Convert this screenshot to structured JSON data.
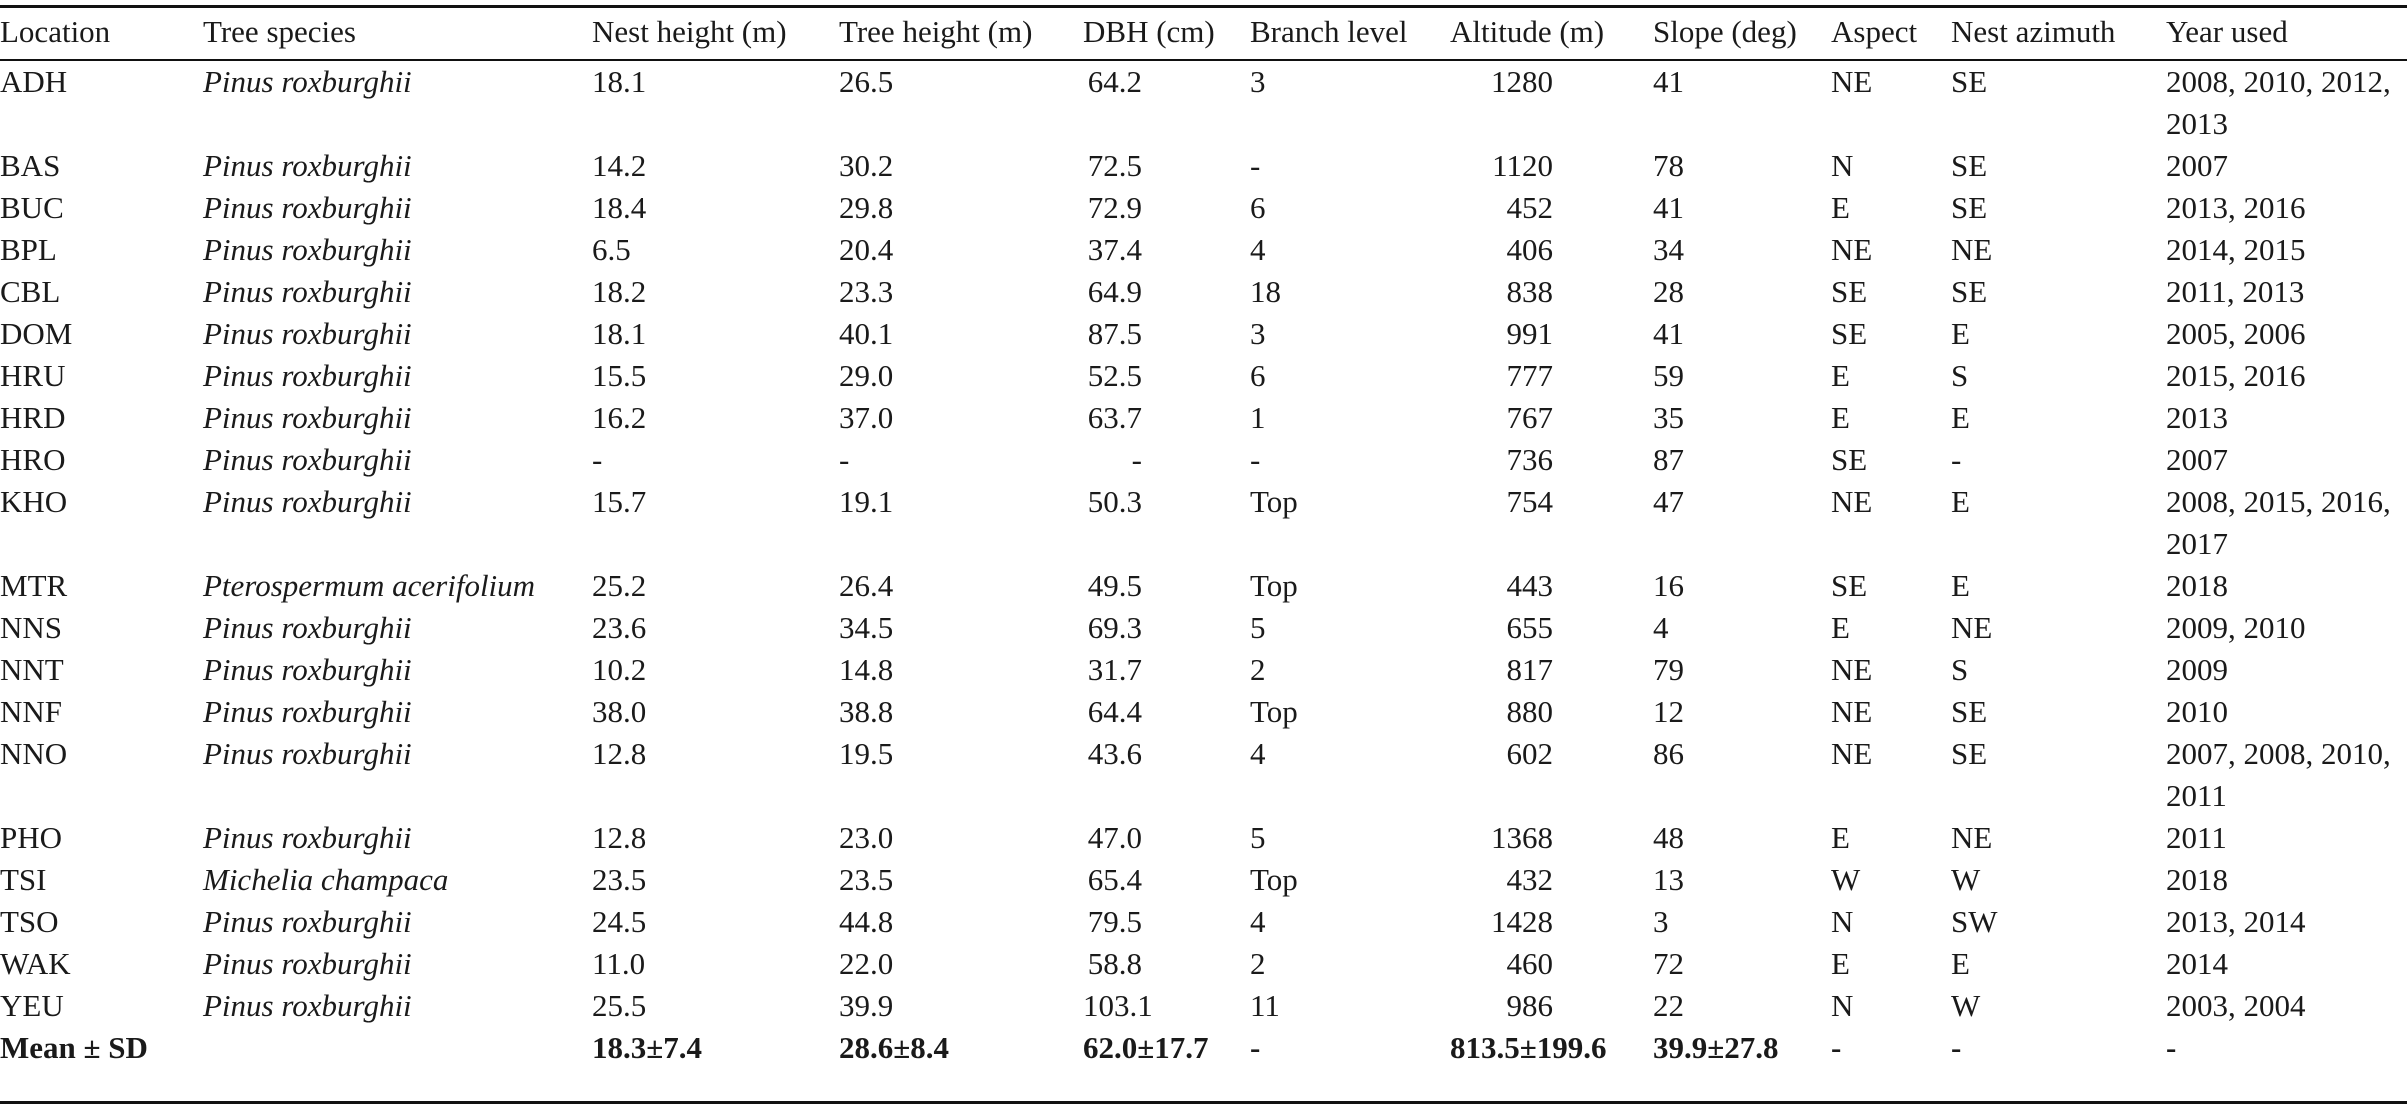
{
  "table": {
    "columns": [
      "Location",
      "Tree species",
      "Nest height (m)",
      "Tree height (m)",
      "DBH (cm)",
      "Branch level",
      "Altitude (m)",
      "Slope (deg)",
      "Aspect",
      "Nest azimuth",
      "Year used"
    ],
    "rows": [
      {
        "location": "ADH",
        "species": "Pinus roxburghii",
        "nest_height": "18.1",
        "tree_height": "26.5",
        "dbh": "64.2",
        "branch_level": "3",
        "altitude": "1280",
        "slope": "41",
        "aspect": "NE",
        "nest_azimuth": "SE",
        "year_used": "2008, 2010, 2012, 2013"
      },
      {
        "location": "BAS",
        "species": "Pinus roxburghii",
        "nest_height": "14.2",
        "tree_height": "30.2",
        "dbh": "72.5",
        "branch_level": "-",
        "altitude": "1120",
        "slope": "78",
        "aspect": "N",
        "nest_azimuth": "SE",
        "year_used": "2007"
      },
      {
        "location": "BUC",
        "species": "Pinus roxburghii",
        "nest_height": "18.4",
        "tree_height": "29.8",
        "dbh": "72.9",
        "branch_level": "6",
        "altitude": "452",
        "slope": "41",
        "aspect": "E",
        "nest_azimuth": "SE",
        "year_used": "2013, 2016"
      },
      {
        "location": "BPL",
        "species": "Pinus roxburghii",
        "nest_height": "6.5",
        "tree_height": "20.4",
        "dbh": "37.4",
        "branch_level": "4",
        "altitude": "406",
        "slope": "34",
        "aspect": "NE",
        "nest_azimuth": "NE",
        "year_used": "2014, 2015"
      },
      {
        "location": "CBL",
        "species": "Pinus roxburghii",
        "nest_height": "18.2",
        "tree_height": "23.3",
        "dbh": "64.9",
        "branch_level": "18",
        "altitude": "838",
        "slope": "28",
        "aspect": "SE",
        "nest_azimuth": "SE",
        "year_used": "2011, 2013"
      },
      {
        "location": "DOM",
        "species": "Pinus roxburghii",
        "nest_height": "18.1",
        "tree_height": "40.1",
        "dbh": "87.5",
        "branch_level": "3",
        "altitude": "991",
        "slope": "41",
        "aspect": "SE",
        "nest_azimuth": "E",
        "year_used": "2005, 2006"
      },
      {
        "location": "HRU",
        "species": "Pinus roxburghii",
        "nest_height": "15.5",
        "tree_height": "29.0",
        "dbh": "52.5",
        "branch_level": "6",
        "altitude": "777",
        "slope": "59",
        "aspect": "E",
        "nest_azimuth": "S",
        "year_used": "2015, 2016"
      },
      {
        "location": "HRD",
        "species": "Pinus roxburghii",
        "nest_height": "16.2",
        "tree_height": "37.0",
        "dbh": "63.7",
        "branch_level": "1",
        "altitude": "767",
        "slope": "35",
        "aspect": "E",
        "nest_azimuth": "E",
        "year_used": "2013"
      },
      {
        "location": "HRO",
        "species": "Pinus roxburghii",
        "nest_height": "-",
        "tree_height": "-",
        "dbh": "-",
        "branch_level": "-",
        "altitude": "736",
        "slope": "87",
        "aspect": "SE",
        "nest_azimuth": "-",
        "year_used": "2007"
      },
      {
        "location": "KHO",
        "species": "Pinus roxburghii",
        "nest_height": "15.7",
        "tree_height": "19.1",
        "dbh": "50.3",
        "branch_level": "Top",
        "altitude": "754",
        "slope": "47",
        "aspect": "NE",
        "nest_azimuth": "E",
        "year_used": "2008, 2015, 2016, 2017"
      },
      {
        "location": "MTR",
        "species": "Pterospermum acerifolium",
        "nest_height": "25.2",
        "tree_height": "26.4",
        "dbh": "49.5",
        "branch_level": "Top",
        "altitude": "443",
        "slope": "16",
        "aspect": "SE",
        "nest_azimuth": "E",
        "year_used": "2018"
      },
      {
        "location": "NNS",
        "species": "Pinus roxburghii",
        "nest_height": "23.6",
        "tree_height": "34.5",
        "dbh": "69.3",
        "branch_level": "5",
        "altitude": "655",
        "slope": "4",
        "aspect": "E",
        "nest_azimuth": "NE",
        "year_used": "2009, 2010"
      },
      {
        "location": "NNT",
        "species": "Pinus roxburghii",
        "nest_height": "10.2",
        "tree_height": "14.8",
        "dbh": "31.7",
        "branch_level": "2",
        "altitude": "817",
        "slope": "79",
        "aspect": "NE",
        "nest_azimuth": "S",
        "year_used": "2009"
      },
      {
        "location": "NNF",
        "species": "Pinus roxburghii",
        "nest_height": "38.0",
        "tree_height": "38.8",
        "dbh": "64.4",
        "branch_level": "Top",
        "altitude": "880",
        "slope": "12",
        "aspect": "NE",
        "nest_azimuth": "SE",
        "year_used": "2010"
      },
      {
        "location": "NNO",
        "species": "Pinus roxburghii",
        "nest_height": "12.8",
        "tree_height": "19.5",
        "dbh": "43.6",
        "branch_level": "4",
        "altitude": "602",
        "slope": "86",
        "aspect": "NE",
        "nest_azimuth": "SE",
        "year_used": "2007, 2008, 2010, 2011"
      },
      {
        "location": "PHO",
        "species": "Pinus roxburghii",
        "nest_height": "12.8",
        "tree_height": "23.0",
        "dbh": "47.0",
        "branch_level": "5",
        "altitude": "1368",
        "slope": "48",
        "aspect": "E",
        "nest_azimuth": "NE",
        "year_used": "2011"
      },
      {
        "location": "TSI",
        "species": "Michelia champaca",
        "nest_height": "23.5",
        "tree_height": "23.5",
        "dbh": "65.4",
        "branch_level": "Top",
        "altitude": "432",
        "slope": "13",
        "aspect": "W",
        "nest_azimuth": "W",
        "year_used": "2018"
      },
      {
        "location": "TSO",
        "species": "Pinus roxburghii",
        "nest_height": "24.5",
        "tree_height": "44.8",
        "dbh": "79.5",
        "branch_level": "4",
        "altitude": "1428",
        "slope": "3",
        "aspect": "N",
        "nest_azimuth": "SW",
        "year_used": "2013, 2014"
      },
      {
        "location": "WAK",
        "species": "Pinus roxburghii",
        "nest_height": "11.0",
        "tree_height": "22.0",
        "dbh": "58.8",
        "branch_level": "2",
        "altitude": "460",
        "slope": "72",
        "aspect": "E",
        "nest_azimuth": "E",
        "year_used": "2014"
      },
      {
        "location": "YEU",
        "species": "Pinus roxburghii",
        "nest_height": "25.5",
        "tree_height": "39.9",
        "dbh": "103.1",
        "branch_level": "11",
        "altitude": "986",
        "slope": "22",
        "aspect": "N",
        "nest_azimuth": "W",
        "year_used": "2003, 2004"
      }
    ],
    "summary": {
      "label": "Mean ± SD",
      "species": "",
      "nest_height": "18.3±7.4",
      "tree_height": "28.6±8.4",
      "dbh": "62.0±17.7",
      "branch_level": "-",
      "altitude": "813.5±199.6",
      "slope": "39.9±27.8",
      "aspect": "-",
      "nest_azimuth": "-",
      "year_used": "-"
    }
  }
}
